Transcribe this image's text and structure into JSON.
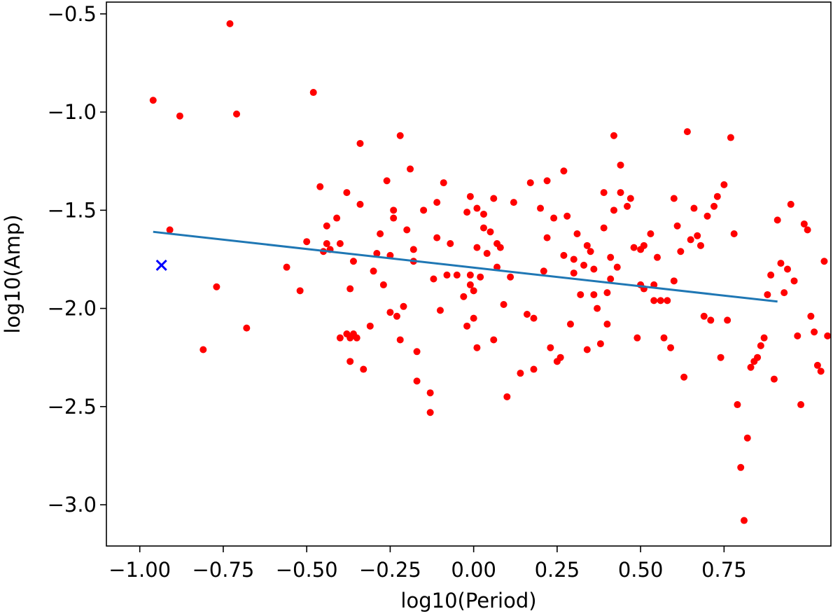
{
  "chart_data": {
    "type": "scatter",
    "title": "",
    "xlabel": "log10(Period)",
    "ylabel": "log10(Amp)",
    "xlim": [
      -1.1,
      1.07
    ],
    "ylim": [
      -3.21,
      -0.44
    ],
    "grid": false,
    "legend": "none",
    "xticks": [
      -1.0,
      -0.75,
      -0.5,
      -0.25,
      0.0,
      0.25,
      0.5,
      0.75
    ],
    "xtick_labels": [
      "−1.00",
      "−0.75",
      "−0.50",
      "−0.25",
      "0.00",
      "0.25",
      "0.50",
      "0.75"
    ],
    "yticks": [
      -3.0,
      -2.5,
      -2.0,
      -1.5,
      -1.0,
      -0.5
    ],
    "ytick_labels": [
      "−3.0",
      "−2.5",
      "−2.0",
      "−1.5",
      "−1.0",
      "−0.5"
    ],
    "colors": {
      "points": "#ff0000",
      "fit": "#1f77b4",
      "marker": "#0000ff",
      "axes": "#000000"
    },
    "series": [
      {
        "kind": "points",
        "points": [
          [
            -0.96,
            -0.94
          ],
          [
            -0.73,
            -0.55
          ],
          [
            -0.71,
            -1.01
          ],
          [
            -0.88,
            -1.02
          ],
          [
            -0.91,
            -1.6
          ],
          [
            -0.81,
            -2.21
          ],
          [
            -0.77,
            -1.89
          ],
          [
            -0.68,
            -2.1
          ],
          [
            -0.56,
            -1.79
          ],
          [
            -0.52,
            -1.91
          ],
          [
            -0.5,
            -1.66
          ],
          [
            -0.48,
            -0.9
          ],
          [
            -0.46,
            -1.38
          ],
          [
            -0.45,
            -1.71
          ],
          [
            -0.44,
            -1.58
          ],
          [
            -0.44,
            -1.67
          ],
          [
            -0.43,
            -1.7
          ],
          [
            -0.41,
            -1.54
          ],
          [
            -0.4,
            -1.67
          ],
          [
            -0.4,
            -2.15
          ],
          [
            -0.38,
            -1.41
          ],
          [
            -0.38,
            -2.13
          ],
          [
            -0.37,
            -1.9
          ],
          [
            -0.37,
            -2.27
          ],
          [
            -0.37,
            -2.15
          ],
          [
            -0.36,
            -1.76
          ],
          [
            -0.36,
            -2.13
          ],
          [
            -0.35,
            -2.15
          ],
          [
            -0.34,
            -1.47
          ],
          [
            -0.34,
            -1.16
          ],
          [
            -0.33,
            -2.31
          ],
          [
            -0.31,
            -2.09
          ],
          [
            -0.3,
            -1.81
          ],
          [
            -0.29,
            -1.72
          ],
          [
            -0.28,
            -1.62
          ],
          [
            -0.27,
            -1.88
          ],
          [
            -0.26,
            -1.35
          ],
          [
            -0.25,
            -2.02
          ],
          [
            -0.25,
            -1.73
          ],
          [
            -0.24,
            -1.54
          ],
          [
            -0.24,
            -1.5
          ],
          [
            -0.23,
            -2.04
          ],
          [
            -0.22,
            -1.12
          ],
          [
            -0.22,
            -2.16
          ],
          [
            -0.21,
            -1.99
          ],
          [
            -0.2,
            -1.6
          ],
          [
            -0.19,
            -1.29
          ],
          [
            -0.18,
            -1.76
          ],
          [
            -0.18,
            -1.7
          ],
          [
            -0.17,
            -2.22
          ],
          [
            -0.17,
            -2.37
          ],
          [
            -0.15,
            -1.5
          ],
          [
            -0.13,
            -2.53
          ],
          [
            -0.13,
            -2.43
          ],
          [
            -0.12,
            -1.85
          ],
          [
            -0.11,
            -1.46
          ],
          [
            -0.11,
            -1.64
          ],
          [
            -0.1,
            -2.01
          ],
          [
            -0.09,
            -1.36
          ],
          [
            -0.08,
            -1.83
          ],
          [
            -0.07,
            -1.67
          ],
          [
            -0.03,
            -1.94
          ],
          [
            -0.02,
            -1.51
          ],
          [
            -0.02,
            -2.09
          ],
          [
            -0.01,
            -1.43
          ],
          [
            -0.01,
            -1.83
          ],
          [
            -0.01,
            -1.88
          ],
          [
            0.0,
            -1.91
          ],
          [
            0.0,
            -2.05
          ],
          [
            0.01,
            -1.69
          ],
          [
            0.01,
            -1.49
          ],
          [
            0.01,
            -2.2
          ],
          [
            0.02,
            -1.84
          ],
          [
            0.03,
            -1.52
          ],
          [
            0.03,
            -1.59
          ],
          [
            0.04,
            -1.72
          ],
          [
            0.05,
            -1.61
          ],
          [
            0.06,
            -1.44
          ],
          [
            0.06,
            -2.16
          ],
          [
            0.07,
            -1.67
          ],
          [
            0.07,
            -1.79
          ],
          [
            0.08,
            -1.69
          ],
          [
            0.09,
            -1.98
          ],
          [
            0.1,
            -2.45
          ],
          [
            0.11,
            -1.84
          ],
          [
            0.12,
            -1.46
          ],
          [
            0.14,
            -2.33
          ],
          [
            0.16,
            -2.03
          ],
          [
            0.17,
            -1.36
          ],
          [
            0.18,
            -2.05
          ],
          [
            0.18,
            -2.31
          ],
          [
            0.2,
            -1.49
          ],
          [
            0.21,
            -1.81
          ],
          [
            0.22,
            -1.35
          ],
          [
            0.22,
            -1.64
          ],
          [
            0.23,
            -2.2
          ],
          [
            0.24,
            -1.54
          ],
          [
            0.25,
            -2.27
          ],
          [
            0.26,
            -2.25
          ],
          [
            0.27,
            -1.3
          ],
          [
            0.27,
            -1.73
          ],
          [
            0.28,
            -1.53
          ],
          [
            0.29,
            -2.08
          ],
          [
            0.3,
            -1.75
          ],
          [
            0.3,
            -1.82
          ],
          [
            0.31,
            -1.62
          ],
          [
            0.32,
            -1.93
          ],
          [
            0.33,
            -1.78
          ],
          [
            0.34,
            -1.68
          ],
          [
            0.34,
            -2.21
          ],
          [
            0.35,
            -1.71
          ],
          [
            0.36,
            -1.8
          ],
          [
            0.36,
            -1.93
          ],
          [
            0.37,
            -2.0
          ],
          [
            0.38,
            -2.18
          ],
          [
            0.39,
            -1.41
          ],
          [
            0.39,
            -1.59
          ],
          [
            0.4,
            -1.92
          ],
          [
            0.4,
            -2.08
          ],
          [
            0.41,
            -1.74
          ],
          [
            0.41,
            -1.85
          ],
          [
            0.42,
            -1.5
          ],
          [
            0.42,
            -1.12
          ],
          [
            0.43,
            -1.79
          ],
          [
            0.44,
            -1.27
          ],
          [
            0.44,
            -1.41
          ],
          [
            0.46,
            -1.48
          ],
          [
            0.47,
            -1.44
          ],
          [
            0.48,
            -1.69
          ],
          [
            0.49,
            -2.15
          ],
          [
            0.5,
            -1.88
          ],
          [
            0.5,
            -1.7
          ],
          [
            0.51,
            -1.9
          ],
          [
            0.51,
            -1.68
          ],
          [
            0.53,
            -1.62
          ],
          [
            0.54,
            -1.96
          ],
          [
            0.54,
            -1.88
          ],
          [
            0.55,
            -1.74
          ],
          [
            0.56,
            -1.96
          ],
          [
            0.57,
            -2.15
          ],
          [
            0.58,
            -1.96
          ],
          [
            0.59,
            -2.2
          ],
          [
            0.6,
            -1.86
          ],
          [
            0.6,
            -1.44
          ],
          [
            0.61,
            -1.58
          ],
          [
            0.62,
            -1.71
          ],
          [
            0.63,
            -2.35
          ],
          [
            0.64,
            -1.1
          ],
          [
            0.65,
            -1.65
          ],
          [
            0.66,
            -1.49
          ],
          [
            0.67,
            -1.63
          ],
          [
            0.68,
            -1.68
          ],
          [
            0.69,
            -2.04
          ],
          [
            0.7,
            -1.53
          ],
          [
            0.71,
            -2.06
          ],
          [
            0.72,
            -1.48
          ],
          [
            0.73,
            -1.43
          ],
          [
            0.74,
            -2.25
          ],
          [
            0.75,
            -1.37
          ],
          [
            0.76,
            -2.06
          ],
          [
            0.77,
            -1.13
          ],
          [
            0.78,
            -1.62
          ],
          [
            0.79,
            -2.49
          ],
          [
            0.8,
            -2.81
          ],
          [
            0.81,
            -3.08
          ],
          [
            0.82,
            -2.66
          ],
          [
            0.83,
            -2.3
          ],
          [
            0.84,
            -2.27
          ],
          [
            0.85,
            -2.25
          ],
          [
            0.86,
            -2.19
          ],
          [
            0.87,
            -2.15
          ],
          [
            0.88,
            -1.93
          ],
          [
            0.89,
            -1.83
          ],
          [
            0.9,
            -2.36
          ],
          [
            0.91,
            -1.55
          ],
          [
            0.92,
            -1.77
          ],
          [
            0.93,
            -1.92
          ],
          [
            0.94,
            -1.8
          ],
          [
            0.95,
            -1.47
          ],
          [
            0.96,
            -1.86
          ],
          [
            0.97,
            -2.14
          ],
          [
            0.98,
            -2.49
          ],
          [
            0.99,
            -1.57
          ],
          [
            1.0,
            -1.6
          ],
          [
            1.01,
            -2.04
          ],
          [
            1.02,
            -2.12
          ],
          [
            1.03,
            -2.29
          ],
          [
            1.04,
            -2.32
          ],
          [
            1.05,
            -1.76
          ],
          [
            1.06,
            -2.14
          ],
          [
            -0.05,
            -1.83
          ]
        ]
      },
      {
        "kind": "fit-line",
        "points": [
          [
            -0.96,
            -1.61
          ],
          [
            0.91,
            -1.965
          ]
        ]
      },
      {
        "kind": "cross-marker",
        "points": [
          [
            -0.935,
            -1.78
          ]
        ]
      }
    ]
  }
}
